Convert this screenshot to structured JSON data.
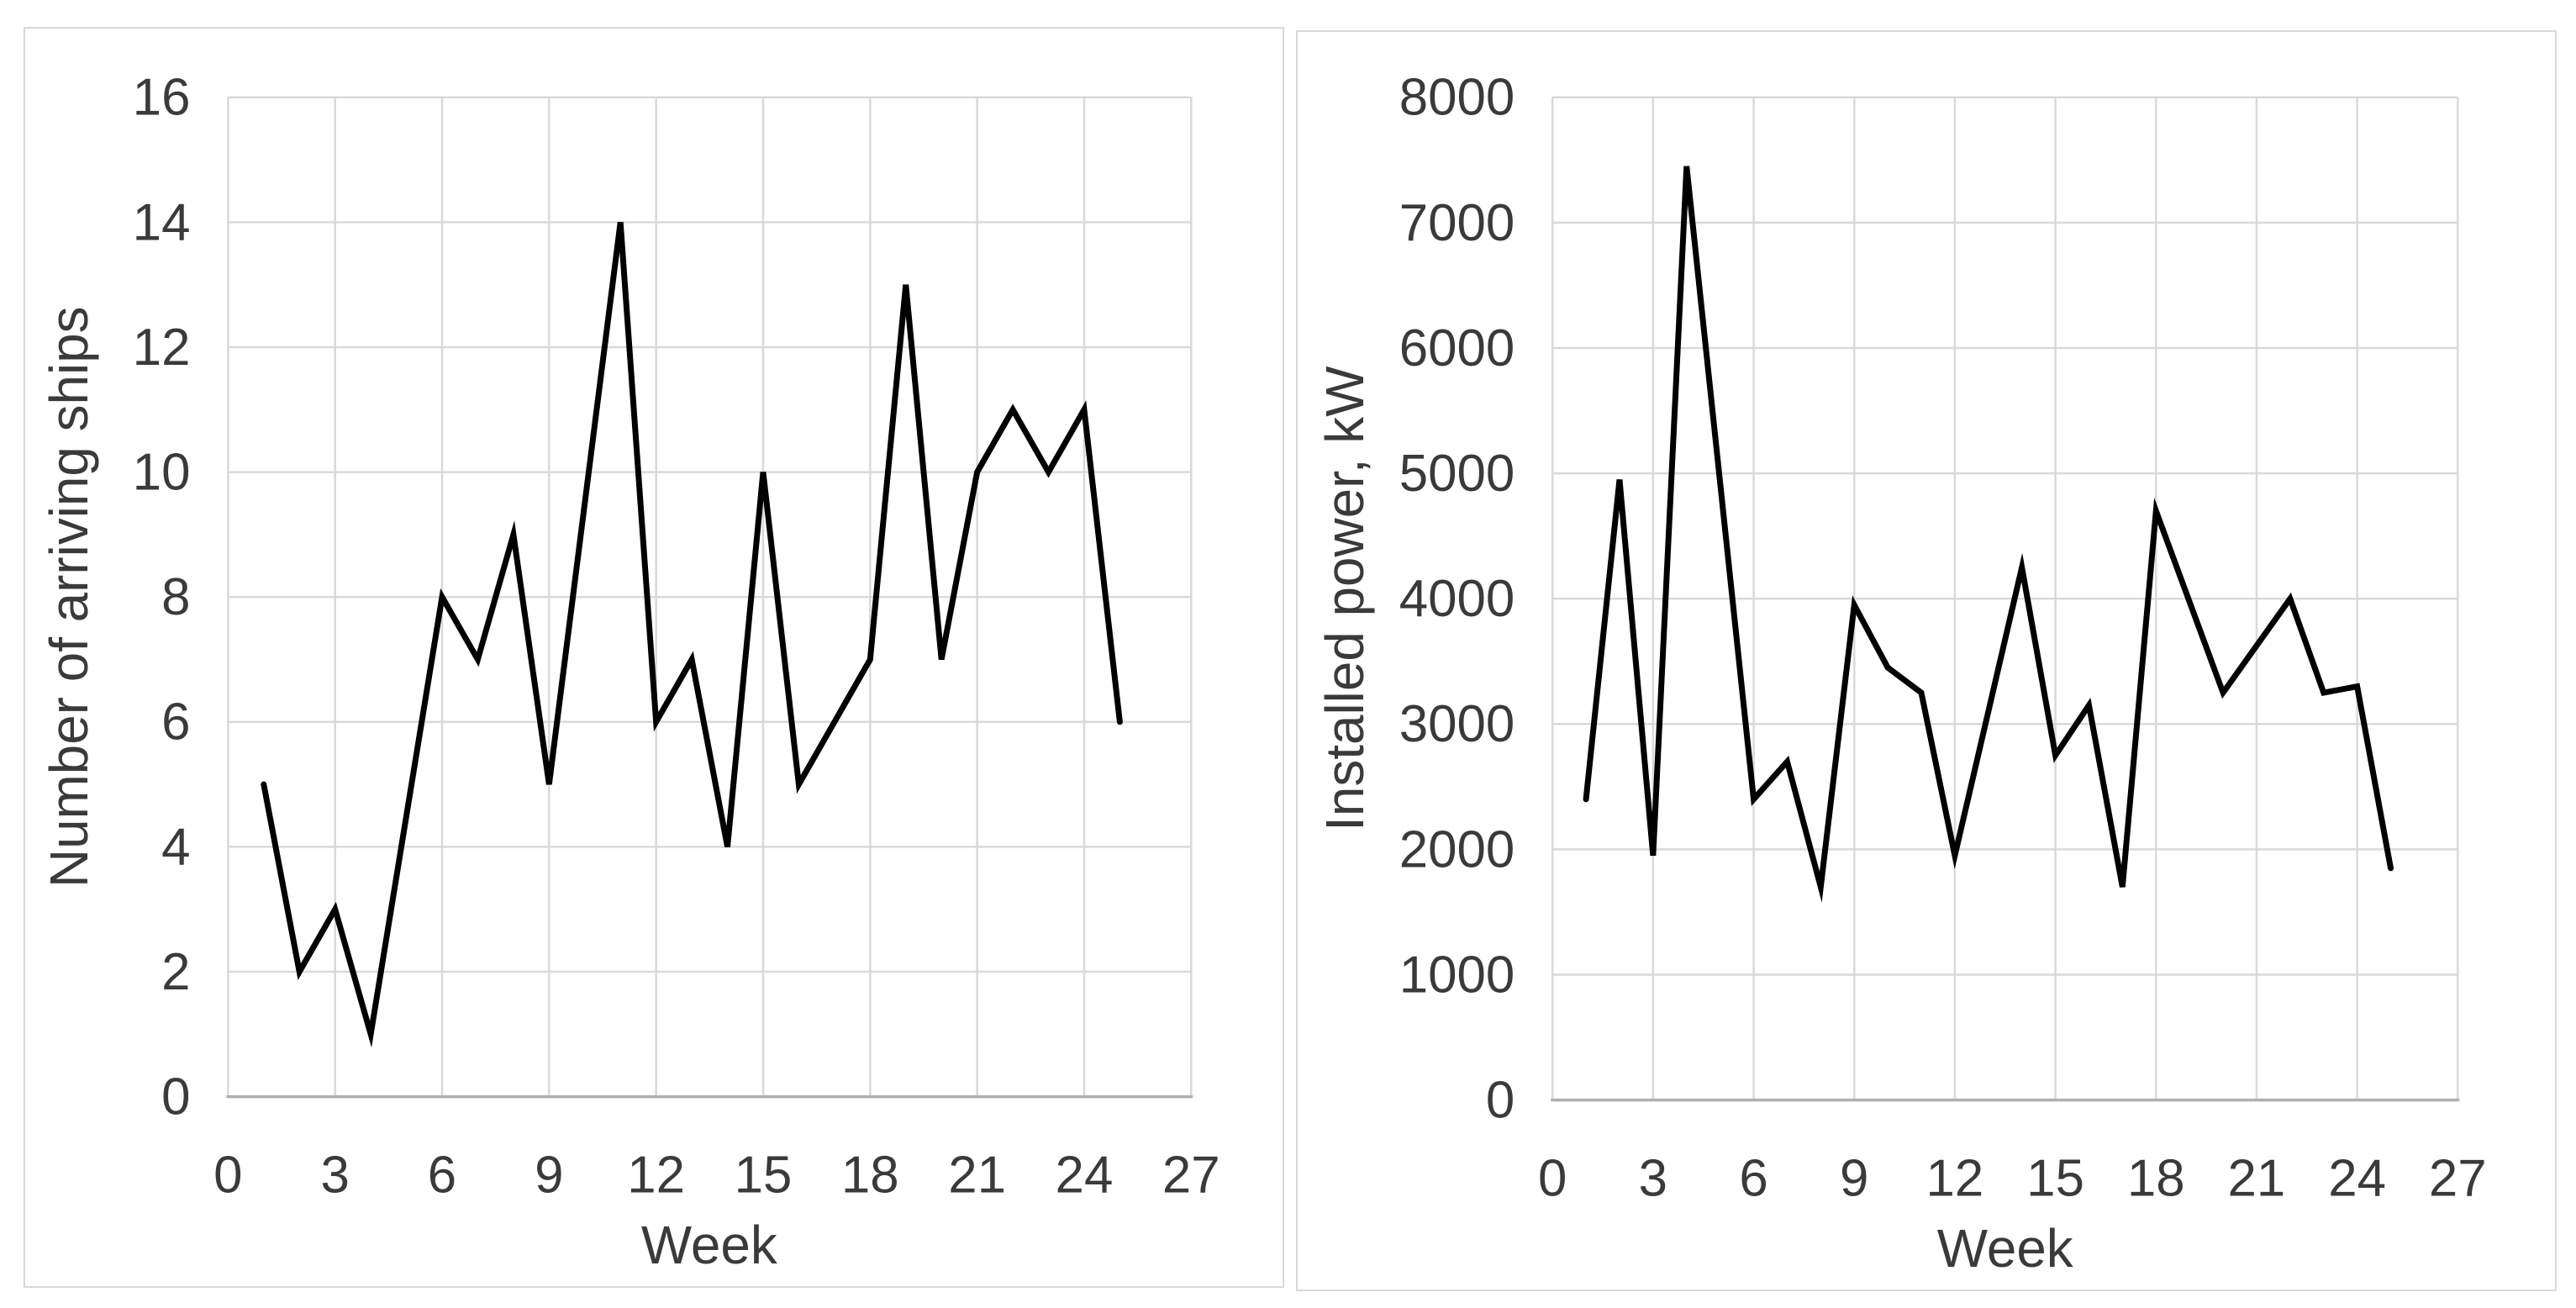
{
  "page": {
    "background": "#ffffff",
    "panel_border_color": "#d9d9d9"
  },
  "chart_data": [
    {
      "type": "line",
      "title": "",
      "xlabel": "Week",
      "ylabel": "Number of arriving ships",
      "x": [
        1,
        2,
        3,
        4,
        6,
        7,
        8,
        9,
        11,
        12,
        13,
        14,
        15,
        16,
        17,
        18,
        19,
        20,
        21,
        22,
        23,
        24,
        25
      ],
      "y": [
        5,
        2,
        3,
        1,
        8,
        7,
        9,
        5,
        14,
        6,
        7,
        4,
        10,
        5,
        6,
        7,
        13,
        7,
        10,
        11,
        10,
        11,
        6
      ],
      "gap_weeks": [
        5,
        10
      ],
      "xlim": [
        0,
        27
      ],
      "ylim": [
        0,
        16
      ],
      "xticks": [
        0,
        3,
        6,
        9,
        12,
        15,
        18,
        21,
        24,
        27
      ],
      "yticks": [
        0,
        2,
        4,
        6,
        8,
        10,
        12,
        14,
        16
      ],
      "grid": true,
      "legend": "none",
      "line_color": "#000000",
      "gridline_color": "#d9d9d9",
      "axis_color": "#b0b0b0",
      "text_color": "#3a3a3a"
    },
    {
      "type": "line",
      "title": "",
      "xlabel": "Week",
      "ylabel": "Installed power, kW",
      "x": [
        1,
        2,
        3,
        4,
        6,
        7,
        8,
        9,
        10,
        11,
        12,
        14,
        15,
        16,
        17,
        18,
        20,
        22,
        23,
        24,
        25
      ],
      "y": [
        2400,
        4950,
        1950,
        7450,
        2400,
        2700,
        1700,
        3950,
        3450,
        3250,
        1950,
        4250,
        2750,
        3150,
        1700,
        4700,
        3250,
        4000,
        3250,
        3300,
        1850
      ],
      "gap_weeks": [
        5,
        13,
        19,
        21
      ],
      "xlim": [
        0,
        27
      ],
      "ylim": [
        0,
        8000
      ],
      "xticks": [
        0,
        3,
        6,
        9,
        12,
        15,
        18,
        21,
        24,
        27
      ],
      "yticks": [
        0,
        1000,
        2000,
        3000,
        4000,
        5000,
        6000,
        7000,
        8000
      ],
      "grid": true,
      "legend": "none",
      "line_color": "#000000",
      "gridline_color": "#d9d9d9",
      "axis_color": "#b0b0b0",
      "text_color": "#3a3a3a"
    }
  ]
}
